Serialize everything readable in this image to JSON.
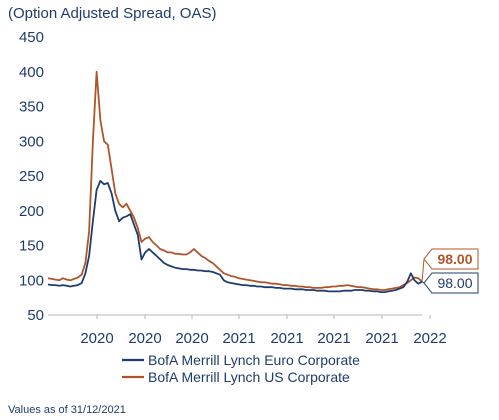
{
  "chart_data": {
    "type": "line",
    "title": "(Option Adjusted Spread, OAS)",
    "ylim": [
      50,
      450
    ],
    "yticks": [
      50,
      100,
      150,
      200,
      250,
      300,
      350,
      400,
      450
    ],
    "xticks": [
      "2020",
      "2020",
      "2020",
      "2021",
      "2021",
      "2021",
      "2021",
      "2022"
    ],
    "series": [
      {
        "name": "BofA Merrill Lynch Euro Corporate",
        "color": "#1f3c6e",
        "end_label": "98.00",
        "values": [
          94,
          93,
          93,
          92,
          93,
          92,
          91,
          92,
          93,
          96,
          110,
          135,
          185,
          230,
          243,
          238,
          240,
          225,
          200,
          185,
          190,
          192,
          195,
          180,
          165,
          130,
          140,
          145,
          140,
          135,
          130,
          125,
          122,
          120,
          118,
          117,
          116,
          116,
          115,
          115,
          114,
          114,
          113,
          113,
          112,
          110,
          108,
          100,
          97,
          96,
          95,
          94,
          93,
          93,
          92,
          92,
          91,
          91,
          90,
          90,
          90,
          89,
          89,
          88,
          88,
          88,
          87,
          87,
          87,
          86,
          86,
          86,
          85,
          85,
          85,
          84,
          84,
          84,
          84,
          85,
          85,
          85,
          86,
          86,
          86,
          85,
          85,
          84,
          84,
          83,
          83,
          84,
          85,
          86,
          88,
          90,
          97,
          110,
          100,
          95,
          98
        ]
      },
      {
        "name": "BofA Merrill Lynch US Corporate",
        "color": "#b0552a",
        "end_label": "98.00",
        "values": [
          103,
          102,
          101,
          100,
          103,
          101,
          100,
          102,
          104,
          108,
          125,
          170,
          300,
          400,
          330,
          300,
          295,
          260,
          225,
          210,
          205,
          210,
          200,
          190,
          175,
          155,
          160,
          162,
          155,
          150,
          145,
          143,
          140,
          140,
          138,
          138,
          137,
          137,
          140,
          145,
          140,
          135,
          132,
          128,
          125,
          120,
          115,
          110,
          108,
          106,
          105,
          103,
          102,
          101,
          100,
          99,
          98,
          97,
          97,
          96,
          95,
          95,
          94,
          93,
          93,
          92,
          92,
          91,
          91,
          90,
          90,
          89,
          89,
          89,
          90,
          90,
          91,
          91,
          92,
          92,
          93,
          92,
          91,
          90,
          90,
          89,
          88,
          87,
          87,
          86,
          86,
          87,
          88,
          89,
          90,
          93,
          96,
          100,
          104,
          103,
          98
        ]
      }
    ]
  },
  "footnote": "Values as of 31/12/2021"
}
